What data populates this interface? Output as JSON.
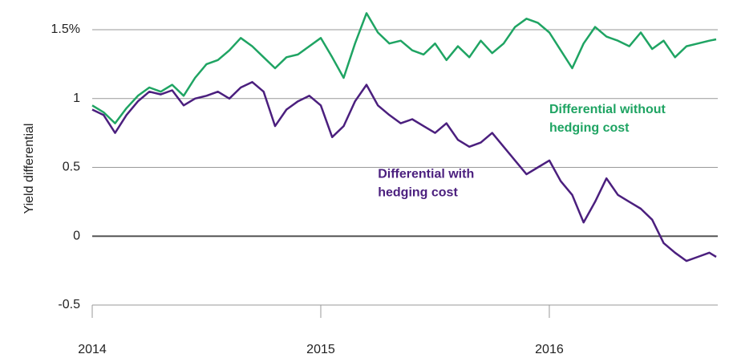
{
  "chart_data": {
    "type": "line",
    "y_label": "Yield differential",
    "x": [
      2014.0,
      2014.05,
      2014.1,
      2014.15,
      2014.2,
      2014.25,
      2014.3,
      2014.35,
      2014.4,
      2014.45,
      2014.5,
      2014.55,
      2014.6,
      2014.65,
      2014.7,
      2014.75,
      2014.8,
      2014.85,
      2014.9,
      2014.95,
      2015.0,
      2015.05,
      2015.1,
      2015.15,
      2015.2,
      2015.25,
      2015.3,
      2015.35,
      2015.4,
      2015.45,
      2015.5,
      2015.55,
      2015.6,
      2015.65,
      2015.7,
      2015.75,
      2015.8,
      2015.85,
      2015.9,
      2015.95,
      2016.0,
      2016.05,
      2016.1,
      2016.15,
      2016.2,
      2016.25,
      2016.3,
      2016.35,
      2016.4,
      2016.45,
      2016.5,
      2016.55,
      2016.6,
      2016.65,
      2016.7,
      2016.73
    ],
    "series": [
      {
        "name": "Differential without hedging cost",
        "color": "#1fa463",
        "values": [
          0.95,
          0.9,
          0.82,
          0.93,
          1.02,
          1.08,
          1.05,
          1.1,
          1.02,
          1.15,
          1.25,
          1.28,
          1.35,
          1.44,
          1.38,
          1.3,
          1.22,
          1.3,
          1.32,
          1.38,
          1.44,
          1.3,
          1.15,
          1.4,
          1.62,
          1.48,
          1.4,
          1.42,
          1.35,
          1.32,
          1.4,
          1.28,
          1.38,
          1.3,
          1.42,
          1.33,
          1.4,
          1.52,
          1.58,
          1.55,
          1.48,
          1.35,
          1.22,
          1.4,
          1.52,
          1.45,
          1.42,
          1.38,
          1.48,
          1.36,
          1.42,
          1.3,
          1.38,
          1.4,
          1.42,
          1.43
        ]
      },
      {
        "name": "Differential with hedging cost",
        "color": "#4b1f7e",
        "values": [
          0.92,
          0.88,
          0.75,
          0.88,
          0.98,
          1.05,
          1.03,
          1.06,
          0.95,
          1.0,
          1.02,
          1.05,
          1.0,
          1.08,
          1.12,
          1.05,
          0.8,
          0.92,
          0.98,
          1.02,
          0.95,
          0.72,
          0.8,
          0.98,
          1.1,
          0.95,
          0.88,
          0.82,
          0.85,
          0.8,
          0.75,
          0.82,
          0.7,
          0.65,
          0.68,
          0.75,
          0.65,
          0.55,
          0.45,
          0.5,
          0.55,
          0.4,
          0.3,
          0.1,
          0.25,
          0.42,
          0.3,
          0.25,
          0.2,
          0.12,
          -0.05,
          -0.12,
          -0.18,
          -0.15,
          -0.12,
          -0.15
        ]
      }
    ],
    "annotations": [
      {
        "lines": [
          "Differential without",
          "hedging cost"
        ],
        "color": "#1fa463",
        "x": 2016.0,
        "y": 0.85
      },
      {
        "lines": [
          "Differential with",
          "hedging cost"
        ],
        "color": "#4b1f7e",
        "x": 2015.25,
        "y": 0.38
      }
    ],
    "xlim": [
      2014,
      2016.73
    ],
    "xticks": [
      2014,
      2015,
      2016
    ],
    "ylim": [
      -0.5,
      1.65
    ],
    "yticks": [
      {
        "value": 1.5,
        "label": "1.5%"
      },
      1,
      0.5,
      0,
      -0.5
    ],
    "grid": true
  }
}
